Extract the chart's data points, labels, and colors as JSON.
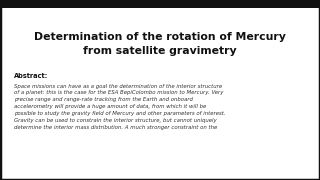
{
  "title_line1": "Determination of the rotation of Mercury",
  "title_line2": "from satellite gravimetry",
  "abstract_label": "Abstract:",
  "abstract_text": "Space missions can have as a goal the determination of the interior structure\nof a planet: this is the case for the ESA BepiColombo mission to Mercury. Very\nprecise range and range-rate tracking from the Earth and onboard\naccelerometry will provide a huge amount of data, from which it will be\npossible to study the gravity field of Mercury and other parameters of interest.\nGravity can be used to constrain the interior structure, but cannot uniquely\ndetermine the interior mass distribution. A much stronger constraint on the",
  "background_color": "#ffffff",
  "border_color": "#111111",
  "title_color": "#111111",
  "text_color": "#333333",
  "title_fontsize": 7.8,
  "abstract_label_fontsize": 4.8,
  "abstract_text_fontsize": 3.9,
  "border_linewidth": 2.5,
  "top_bar_height": 0.045
}
